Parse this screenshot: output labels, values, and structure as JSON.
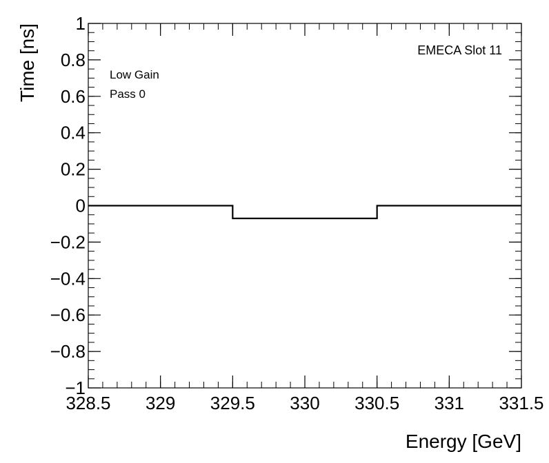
{
  "chart_data": {
    "type": "line",
    "style": "step histogram",
    "x": [
      329,
      330,
      331
    ],
    "bin_edges": [
      328.5,
      329.5,
      330.5,
      331.5
    ],
    "values": [
      0,
      -0.07,
      0
    ],
    "xlabel": "Energy [GeV]",
    "ylabel": "Time [ns]",
    "xlim": [
      328.5,
      331.5
    ],
    "ylim": [
      -1,
      1
    ],
    "x_ticks": [
      "328.5",
      "329",
      "329.5",
      "330",
      "330.5",
      "331",
      "331.5"
    ],
    "y_ticks": [
      "−1",
      "−0.8",
      "−0.6",
      "−0.4",
      "−0.2",
      "0",
      "0.2",
      "0.4",
      "0.6",
      "0.8",
      "1"
    ],
    "annotations": {
      "top_right": "EMECA Slot 11",
      "line1": "Low Gain",
      "line2": "Pass 0"
    },
    "grid": false,
    "colors": {
      "line": "#000000",
      "axes": "#000000",
      "background": "#ffffff"
    }
  }
}
